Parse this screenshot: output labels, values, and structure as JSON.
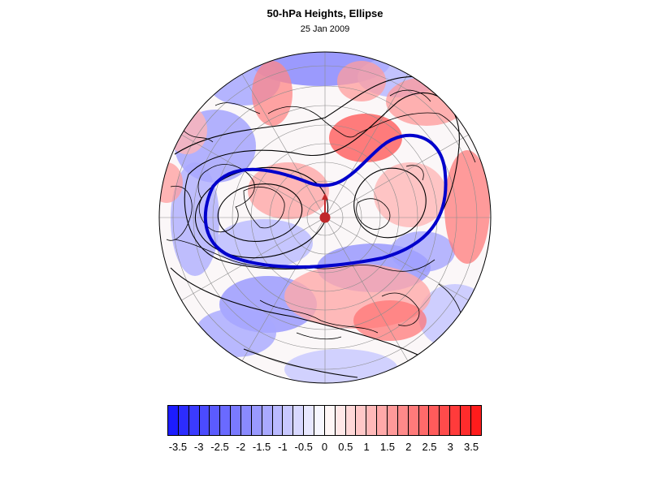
{
  "figure": {
    "title": "50-hPa Heights, Ellipse",
    "subtitle": "25 Jan 2009"
  },
  "colors": {
    "vortex_ellipse": "#0000cc",
    "centroid_marker": "#c0282a",
    "contours": "#000000",
    "negative_max": "#1414ff",
    "positive_max": "#ff1414"
  },
  "map": {
    "projection": "north polar stereographic",
    "features": [
      "coastlines",
      "lat-lon graticule",
      "height contours",
      "anomaly shading",
      "vortex ellipse",
      "centroid marker"
    ]
  },
  "colorbar": {
    "ticks": [
      "-3.5",
      "-3",
      "-2.5",
      "-2",
      "-1.5",
      "-1",
      "-0.5",
      "0",
      "0.5",
      "1",
      "1.5",
      "2",
      "2.5",
      "3",
      "3.5"
    ],
    "levels": [
      -3.75,
      -3.5,
      -3.25,
      -3,
      -2.75,
      -2.5,
      -2.25,
      -2,
      -1.75,
      -1.5,
      -1.25,
      -1,
      -0.75,
      -0.5,
      -0.25,
      0,
      0.25,
      0.5,
      0.75,
      1,
      1.25,
      1.5,
      1.75,
      2,
      2.25,
      2.5,
      2.75,
      3,
      3.25,
      3.5,
      3.75
    ]
  }
}
